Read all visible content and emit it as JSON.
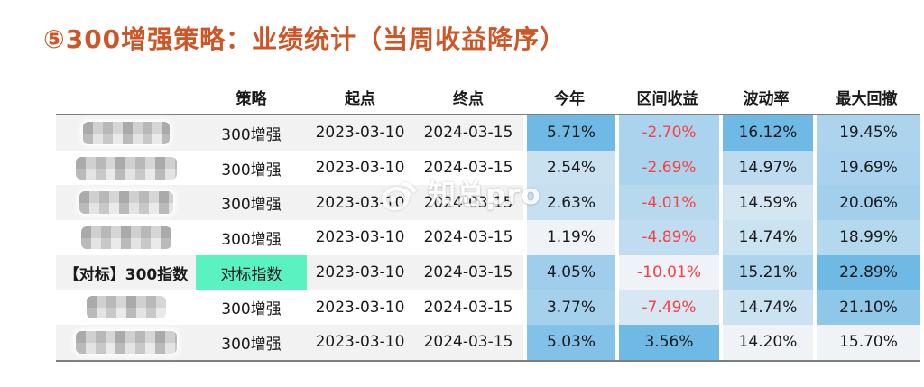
{
  "title": {
    "text": "⑤300增强策略：业绩统计（当周收益降序）",
    "color": "#ce5526"
  },
  "watermark": {
    "text": "知总pro",
    "logo": "weibo-eye-icon"
  },
  "colors": {
    "title": "#ce5526",
    "text": "#1a1a1a",
    "negative_text": "#fa4040",
    "border": "#7d7d7d",
    "zebra_stripe": "#f2f2f2",
    "benchmark_highlight": "#5af2c1",
    "heatmap_low": "#eff2f6",
    "heatmap_high": "#6fb9e5"
  },
  "chart_data": {
    "type": "table",
    "title": "⑤300增强策略：业绩统计（当周收益降序）",
    "columns": [
      "",
      "策略",
      "起点",
      "终点",
      "今年",
      "区间收益",
      "波动率",
      "最大回撤"
    ],
    "heatmap_columns": [
      "今年",
      "区间收益",
      "波动率",
      "最大回撤"
    ],
    "rows": [
      {
        "name": "",
        "masked": true,
        "benchmark": false,
        "strategy": "300增强",
        "start": "2023-03-10",
        "end": "2024-03-15",
        "ytd": "5.71%",
        "interval": "-2.70%",
        "vol": "16.12%",
        "mdd": "19.45%"
      },
      {
        "name": "",
        "masked": true,
        "benchmark": false,
        "strategy": "300增强",
        "start": "2023-03-10",
        "end": "2024-03-15",
        "ytd": "2.54%",
        "interval": "-2.69%",
        "vol": "14.97%",
        "mdd": "19.69%"
      },
      {
        "name": "",
        "masked": true,
        "benchmark": false,
        "strategy": "300增强",
        "start": "2023-03-10",
        "end": "2024-03-15",
        "ytd": "2.63%",
        "interval": "-4.01%",
        "vol": "14.59%",
        "mdd": "20.06%"
      },
      {
        "name": "",
        "masked": true,
        "benchmark": false,
        "strategy": "300增强",
        "start": "2023-03-10",
        "end": "2024-03-15",
        "ytd": "1.19%",
        "interval": "-4.89%",
        "vol": "14.74%",
        "mdd": "18.99%"
      },
      {
        "name": "【对标】300指数",
        "masked": false,
        "benchmark": true,
        "strategy": "对标指数",
        "start": "2023-03-10",
        "end": "2024-03-15",
        "ytd": "4.05%",
        "interval": "-10.01%",
        "vol": "15.21%",
        "mdd": "22.89%"
      },
      {
        "name": "",
        "masked": true,
        "benchmark": false,
        "strategy": "300增强",
        "start": "2023-03-10",
        "end": "2024-03-15",
        "ytd": "3.77%",
        "interval": "-7.49%",
        "vol": "14.74%",
        "mdd": "21.10%"
      },
      {
        "name": "",
        "masked": true,
        "benchmark": false,
        "strategy": "300增强",
        "start": "2023-03-10",
        "end": "2024-03-15",
        "ytd": "5.03%",
        "interval": "3.56%",
        "vol": "14.20%",
        "mdd": "15.70%"
      }
    ]
  }
}
